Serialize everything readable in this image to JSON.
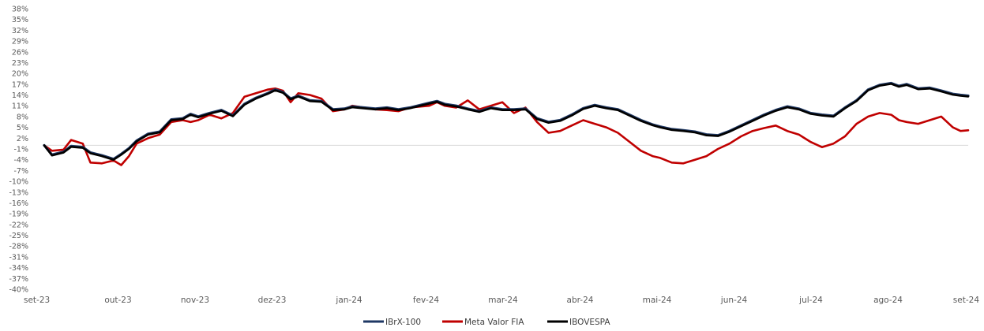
{
  "chart_data": {
    "type": "line",
    "title": "",
    "xlabel": "",
    "ylabel": "",
    "ylim": [
      -40,
      38
    ],
    "y_ticks": [
      "38%",
      "35%",
      "32%",
      "29%",
      "26%",
      "23%",
      "20%",
      "17%",
      "14%",
      "11%",
      "8%",
      "5%",
      "2%",
      "-1%",
      "-4%",
      "-7%",
      "-10%",
      "-13%",
      "-16%",
      "-19%",
      "-22%",
      "-25%",
      "-28%",
      "-31%",
      "-34%",
      "-37%",
      "-40%"
    ],
    "x_ticks": [
      "set-23",
      "out-23",
      "nov-23",
      "dez-23",
      "jan-24",
      "fev-24",
      "mar-24",
      "abr-24",
      "mai-24",
      "jun-24",
      "jul-24",
      "ago-24",
      "set-24"
    ],
    "x_range": [
      0,
      12
    ],
    "grid": false,
    "legend_position": "bottom",
    "series": [
      {
        "name": "IBrX-100",
        "color": "#1f3864",
        "points": [
          [
            0,
            0.0
          ],
          [
            0.1,
            -2.6
          ],
          [
            0.25,
            -1.8
          ],
          [
            0.35,
            -0.2
          ],
          [
            0.5,
            -0.5
          ],
          [
            0.6,
            -2.0
          ],
          [
            0.75,
            -2.8
          ],
          [
            0.9,
            -3.8
          ],
          [
            1.0,
            -2.4
          ],
          [
            1.1,
            -0.8
          ],
          [
            1.2,
            1.3
          ],
          [
            1.35,
            3.2
          ],
          [
            1.5,
            3.8
          ],
          [
            1.65,
            7.2
          ],
          [
            1.8,
            7.5
          ],
          [
            1.9,
            8.7
          ],
          [
            2.0,
            8.0
          ],
          [
            2.15,
            9.0
          ],
          [
            2.3,
            9.8
          ],
          [
            2.45,
            8.3
          ],
          [
            2.6,
            11.5
          ],
          [
            2.75,
            13.2
          ],
          [
            2.9,
            14.5
          ],
          [
            3.0,
            15.5
          ],
          [
            3.1,
            14.8
          ],
          [
            3.2,
            13.0
          ],
          [
            3.3,
            13.8
          ],
          [
            3.45,
            12.5
          ],
          [
            3.6,
            12.3
          ],
          [
            3.75,
            10.0
          ],
          [
            3.9,
            10.2
          ],
          [
            4.0,
            10.8
          ],
          [
            4.15,
            10.5
          ],
          [
            4.3,
            10.2
          ],
          [
            4.45,
            10.5
          ],
          [
            4.6,
            10.0
          ],
          [
            4.75,
            10.5
          ],
          [
            4.9,
            11.3
          ],
          [
            5.0,
            11.8
          ],
          [
            5.1,
            12.3
          ],
          [
            5.2,
            11.5
          ],
          [
            5.35,
            11.0
          ],
          [
            5.5,
            10.2
          ],
          [
            5.65,
            9.5
          ],
          [
            5.8,
            10.5
          ],
          [
            5.95,
            10.0
          ],
          [
            6.1,
            10.0
          ],
          [
            6.25,
            10.2
          ],
          [
            6.4,
            7.5
          ],
          [
            6.55,
            6.5
          ],
          [
            6.7,
            7.0
          ],
          [
            6.85,
            8.5
          ],
          [
            7.0,
            10.3
          ],
          [
            7.15,
            11.2
          ],
          [
            7.3,
            10.5
          ],
          [
            7.45,
            10.0
          ],
          [
            7.6,
            8.5
          ],
          [
            7.75,
            7.0
          ],
          [
            7.9,
            5.8
          ],
          [
            8.0,
            5.2
          ],
          [
            8.15,
            4.5
          ],
          [
            8.3,
            4.2
          ],
          [
            8.45,
            3.8
          ],
          [
            8.6,
            3.0
          ],
          [
            8.75,
            2.8
          ],
          [
            8.9,
            4.0
          ],
          [
            9.05,
            5.5
          ],
          [
            9.2,
            7.0
          ],
          [
            9.35,
            8.5
          ],
          [
            9.5,
            9.8
          ],
          [
            9.65,
            10.8
          ],
          [
            9.8,
            10.2
          ],
          [
            9.95,
            9.0
          ],
          [
            10.1,
            8.5
          ],
          [
            10.25,
            8.2
          ],
          [
            10.4,
            10.5
          ],
          [
            10.55,
            12.5
          ],
          [
            10.7,
            15.5
          ],
          [
            10.85,
            16.8
          ],
          [
            11.0,
            17.3
          ],
          [
            11.1,
            16.5
          ],
          [
            11.2,
            17.0
          ],
          [
            11.35,
            15.8
          ],
          [
            11.5,
            16.0
          ],
          [
            11.65,
            15.2
          ],
          [
            11.8,
            14.3
          ],
          [
            11.9,
            14.0
          ],
          [
            12.0,
            13.8
          ]
        ]
      },
      {
        "name": "Meta Valor FIA",
        "color": "#c00000",
        "points": [
          [
            0,
            0.0
          ],
          [
            0.1,
            -1.5
          ],
          [
            0.25,
            -1.2
          ],
          [
            0.35,
            1.5
          ],
          [
            0.5,
            0.5
          ],
          [
            0.6,
            -4.8
          ],
          [
            0.75,
            -5.0
          ],
          [
            0.9,
            -4.2
          ],
          [
            1.0,
            -5.5
          ],
          [
            1.1,
            -3.0
          ],
          [
            1.2,
            0.5
          ],
          [
            1.35,
            2.0
          ],
          [
            1.5,
            3.0
          ],
          [
            1.65,
            6.5
          ],
          [
            1.8,
            7.0
          ],
          [
            1.9,
            6.5
          ],
          [
            2.0,
            7.0
          ],
          [
            2.15,
            8.5
          ],
          [
            2.3,
            7.5
          ],
          [
            2.45,
            9.0
          ],
          [
            2.6,
            13.5
          ],
          [
            2.75,
            14.5
          ],
          [
            2.9,
            15.5
          ],
          [
            3.0,
            15.8
          ],
          [
            3.1,
            15.2
          ],
          [
            3.2,
            12.0
          ],
          [
            3.3,
            14.5
          ],
          [
            3.45,
            14.0
          ],
          [
            3.6,
            13.0
          ],
          [
            3.75,
            9.5
          ],
          [
            3.9,
            10.0
          ],
          [
            4.0,
            11.0
          ],
          [
            4.15,
            10.5
          ],
          [
            4.3,
            10.0
          ],
          [
            4.45,
            9.8
          ],
          [
            4.6,
            9.5
          ],
          [
            4.75,
            10.5
          ],
          [
            4.9,
            10.8
          ],
          [
            5.0,
            11.0
          ],
          [
            5.1,
            12.0
          ],
          [
            5.2,
            11.0
          ],
          [
            5.35,
            10.5
          ],
          [
            5.5,
            12.5
          ],
          [
            5.65,
            10.0
          ],
          [
            5.8,
            11.0
          ],
          [
            5.95,
            12.0
          ],
          [
            6.1,
            9.0
          ],
          [
            6.25,
            10.5
          ],
          [
            6.4,
            6.5
          ],
          [
            6.55,
            3.5
          ],
          [
            6.7,
            4.0
          ],
          [
            6.85,
            5.5
          ],
          [
            7.0,
            7.0
          ],
          [
            7.15,
            6.0
          ],
          [
            7.3,
            5.0
          ],
          [
            7.45,
            3.5
          ],
          [
            7.6,
            1.0
          ],
          [
            7.75,
            -1.5
          ],
          [
            7.9,
            -3.0
          ],
          [
            8.0,
            -3.5
          ],
          [
            8.15,
            -4.8
          ],
          [
            8.3,
            -5.0
          ],
          [
            8.45,
            -4.0
          ],
          [
            8.6,
            -3.0
          ],
          [
            8.75,
            -1.0
          ],
          [
            8.9,
            0.5
          ],
          [
            9.05,
            2.5
          ],
          [
            9.2,
            4.0
          ],
          [
            9.35,
            4.8
          ],
          [
            9.5,
            5.5
          ],
          [
            9.65,
            4.0
          ],
          [
            9.8,
            3.0
          ],
          [
            9.95,
            1.0
          ],
          [
            10.1,
            -0.5
          ],
          [
            10.25,
            0.5
          ],
          [
            10.4,
            2.5
          ],
          [
            10.55,
            6.0
          ],
          [
            10.7,
            8.0
          ],
          [
            10.85,
            9.0
          ],
          [
            11.0,
            8.5
          ],
          [
            11.1,
            7.0
          ],
          [
            11.2,
            6.5
          ],
          [
            11.35,
            6.0
          ],
          [
            11.5,
            7.0
          ],
          [
            11.65,
            8.0
          ],
          [
            11.8,
            5.0
          ],
          [
            11.9,
            4.0
          ],
          [
            12.0,
            4.2
          ]
        ]
      },
      {
        "name": "IBOVESPA",
        "color": "#000000",
        "points": [
          [
            0,
            0.0
          ],
          [
            0.1,
            -2.8
          ],
          [
            0.25,
            -2.0
          ],
          [
            0.35,
            -0.4
          ],
          [
            0.5,
            -0.7
          ],
          [
            0.6,
            -2.2
          ],
          [
            0.75,
            -3.0
          ],
          [
            0.9,
            -4.0
          ],
          [
            1.0,
            -2.6
          ],
          [
            1.1,
            -1.0
          ],
          [
            1.2,
            1.1
          ],
          [
            1.35,
            3.0
          ],
          [
            1.5,
            3.6
          ],
          [
            1.65,
            7.0
          ],
          [
            1.8,
            7.3
          ],
          [
            1.9,
            8.5
          ],
          [
            2.0,
            7.8
          ],
          [
            2.15,
            8.8
          ],
          [
            2.3,
            9.6
          ],
          [
            2.45,
            8.1
          ],
          [
            2.6,
            11.3
          ],
          [
            2.75,
            13.0
          ],
          [
            2.9,
            14.3
          ],
          [
            3.0,
            15.3
          ],
          [
            3.1,
            14.6
          ],
          [
            3.2,
            12.8
          ],
          [
            3.3,
            13.6
          ],
          [
            3.45,
            12.3
          ],
          [
            3.6,
            12.1
          ],
          [
            3.75,
            9.8
          ],
          [
            3.9,
            10.0
          ],
          [
            4.0,
            10.6
          ],
          [
            4.15,
            10.3
          ],
          [
            4.3,
            10.0
          ],
          [
            4.45,
            10.3
          ],
          [
            4.6,
            9.8
          ],
          [
            4.75,
            10.3
          ],
          [
            4.9,
            11.1
          ],
          [
            5.0,
            11.6
          ],
          [
            5.1,
            12.1
          ],
          [
            5.2,
            11.3
          ],
          [
            5.35,
            10.8
          ],
          [
            5.5,
            10.0
          ],
          [
            5.65,
            9.3
          ],
          [
            5.8,
            10.3
          ],
          [
            5.95,
            9.8
          ],
          [
            6.1,
            9.8
          ],
          [
            6.25,
            10.0
          ],
          [
            6.4,
            7.3
          ],
          [
            6.55,
            6.3
          ],
          [
            6.7,
            6.8
          ],
          [
            6.85,
            8.3
          ],
          [
            7.0,
            10.1
          ],
          [
            7.15,
            11.0
          ],
          [
            7.3,
            10.3
          ],
          [
            7.45,
            9.8
          ],
          [
            7.6,
            8.3
          ],
          [
            7.75,
            6.8
          ],
          [
            7.9,
            5.6
          ],
          [
            8.0,
            5.0
          ],
          [
            8.15,
            4.3
          ],
          [
            8.3,
            4.0
          ],
          [
            8.45,
            3.6
          ],
          [
            8.6,
            2.8
          ],
          [
            8.75,
            2.6
          ],
          [
            8.9,
            3.8
          ],
          [
            9.05,
            5.3
          ],
          [
            9.2,
            6.8
          ],
          [
            9.35,
            8.3
          ],
          [
            9.5,
            9.6
          ],
          [
            9.65,
            10.6
          ],
          [
            9.8,
            10.0
          ],
          [
            9.95,
            8.8
          ],
          [
            10.1,
            8.3
          ],
          [
            10.25,
            8.0
          ],
          [
            10.4,
            10.3
          ],
          [
            10.55,
            12.3
          ],
          [
            10.7,
            15.3
          ],
          [
            10.85,
            16.6
          ],
          [
            11.0,
            17.1
          ],
          [
            11.1,
            16.3
          ],
          [
            11.2,
            16.8
          ],
          [
            11.35,
            15.6
          ],
          [
            11.5,
            15.8
          ],
          [
            11.65,
            15.0
          ],
          [
            11.8,
            14.1
          ],
          [
            11.9,
            13.8
          ],
          [
            12.0,
            13.6
          ]
        ]
      }
    ]
  }
}
